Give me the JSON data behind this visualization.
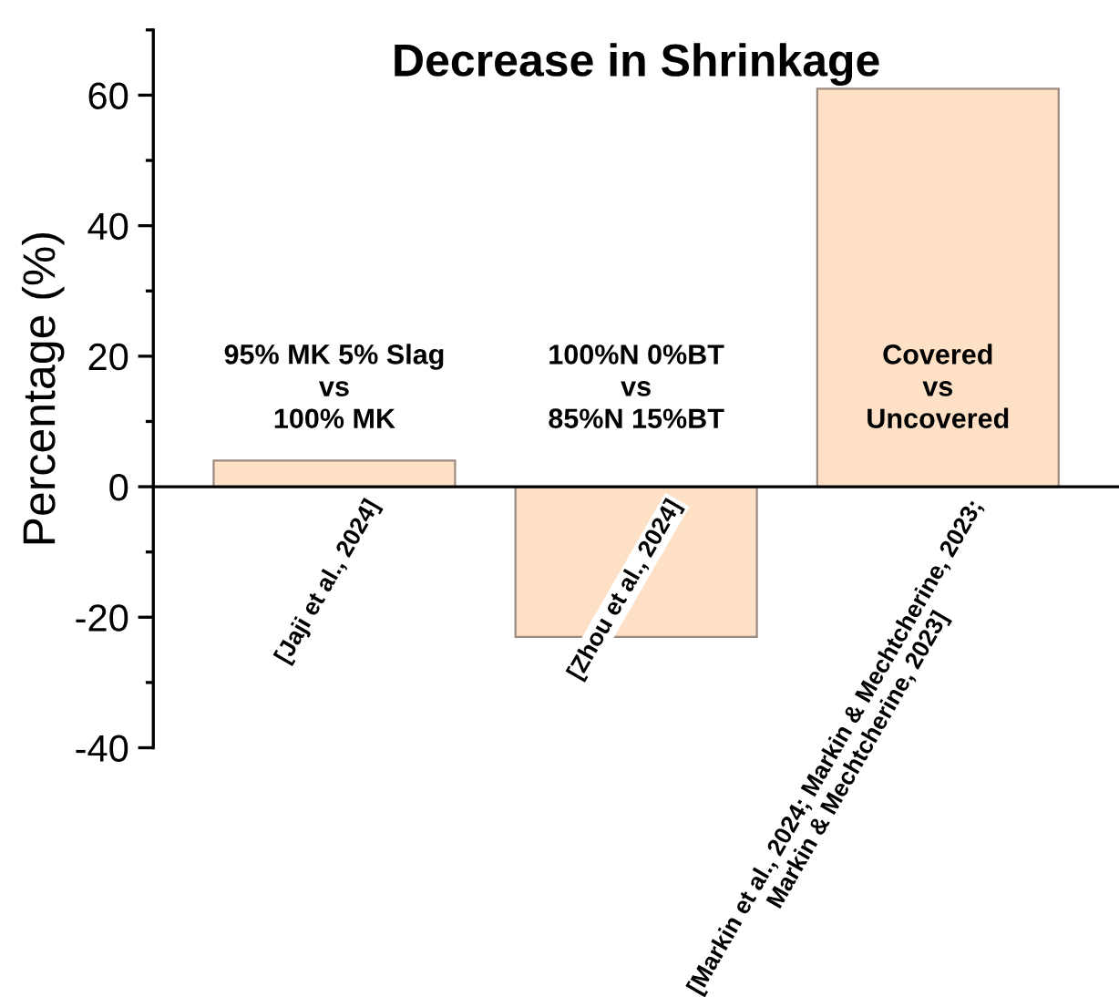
{
  "chart_data": {
    "type": "bar",
    "title": "Decrease in Shrinkage",
    "ylabel": "Percentage (%)",
    "categories": [
      "[Jaji et al., 2024]",
      "[Zhou et al., 2024]",
      "[Markin et al., 2024; Markin & Mechtcherine, 2023;\nMarkin & Mechtcherine, 2023]"
    ],
    "values": [
      4,
      -23,
      61
    ],
    "color": "#fde0c5",
    "ylim": [
      -40,
      70
    ],
    "yticks": [
      -40,
      -20,
      0,
      20,
      40,
      60
    ],
    "grid": false,
    "annotations": [
      "95% MK 5% Slag\nvs\n100% MK",
      "100%N 0%BT\nvs\n85%N 15%BT",
      "Covered\nvs\nUncovered"
    ]
  }
}
